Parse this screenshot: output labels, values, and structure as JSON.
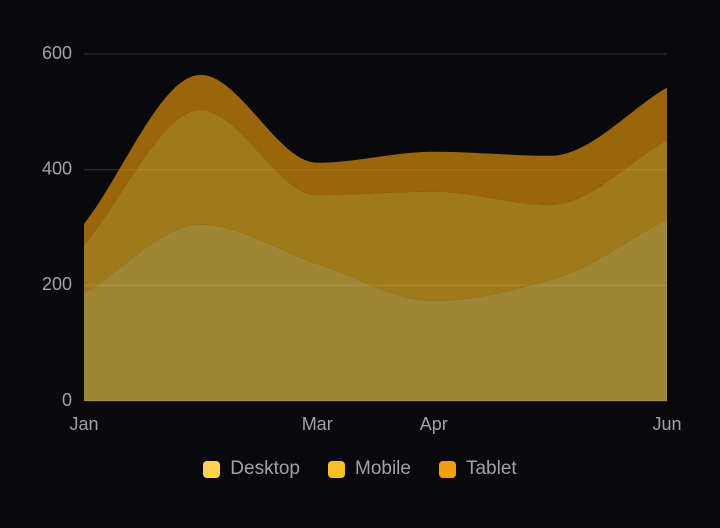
{
  "chart_data": {
    "type": "stacked-area",
    "categories": [
      "Jan",
      null,
      "Mar",
      "Apr",
      null,
      "Jun"
    ],
    "series": [
      {
        "name": "Desktop",
        "color": "#fcd34d",
        "values": [
          186,
          305,
          237,
          173,
          209,
          314
        ]
      },
      {
        "name": "Mobile",
        "color": "#fbbf24",
        "values": [
          84,
          198,
          119,
          189,
          130,
          137
        ]
      },
      {
        "name": "Tablet",
        "color": "#f59e0b",
        "values": [
          36,
          61,
          56,
          69,
          85,
          91
        ]
      }
    ],
    "ylim": [
      0,
      600
    ],
    "yticks": [
      0,
      200,
      400,
      600
    ],
    "grid": true
  }
}
